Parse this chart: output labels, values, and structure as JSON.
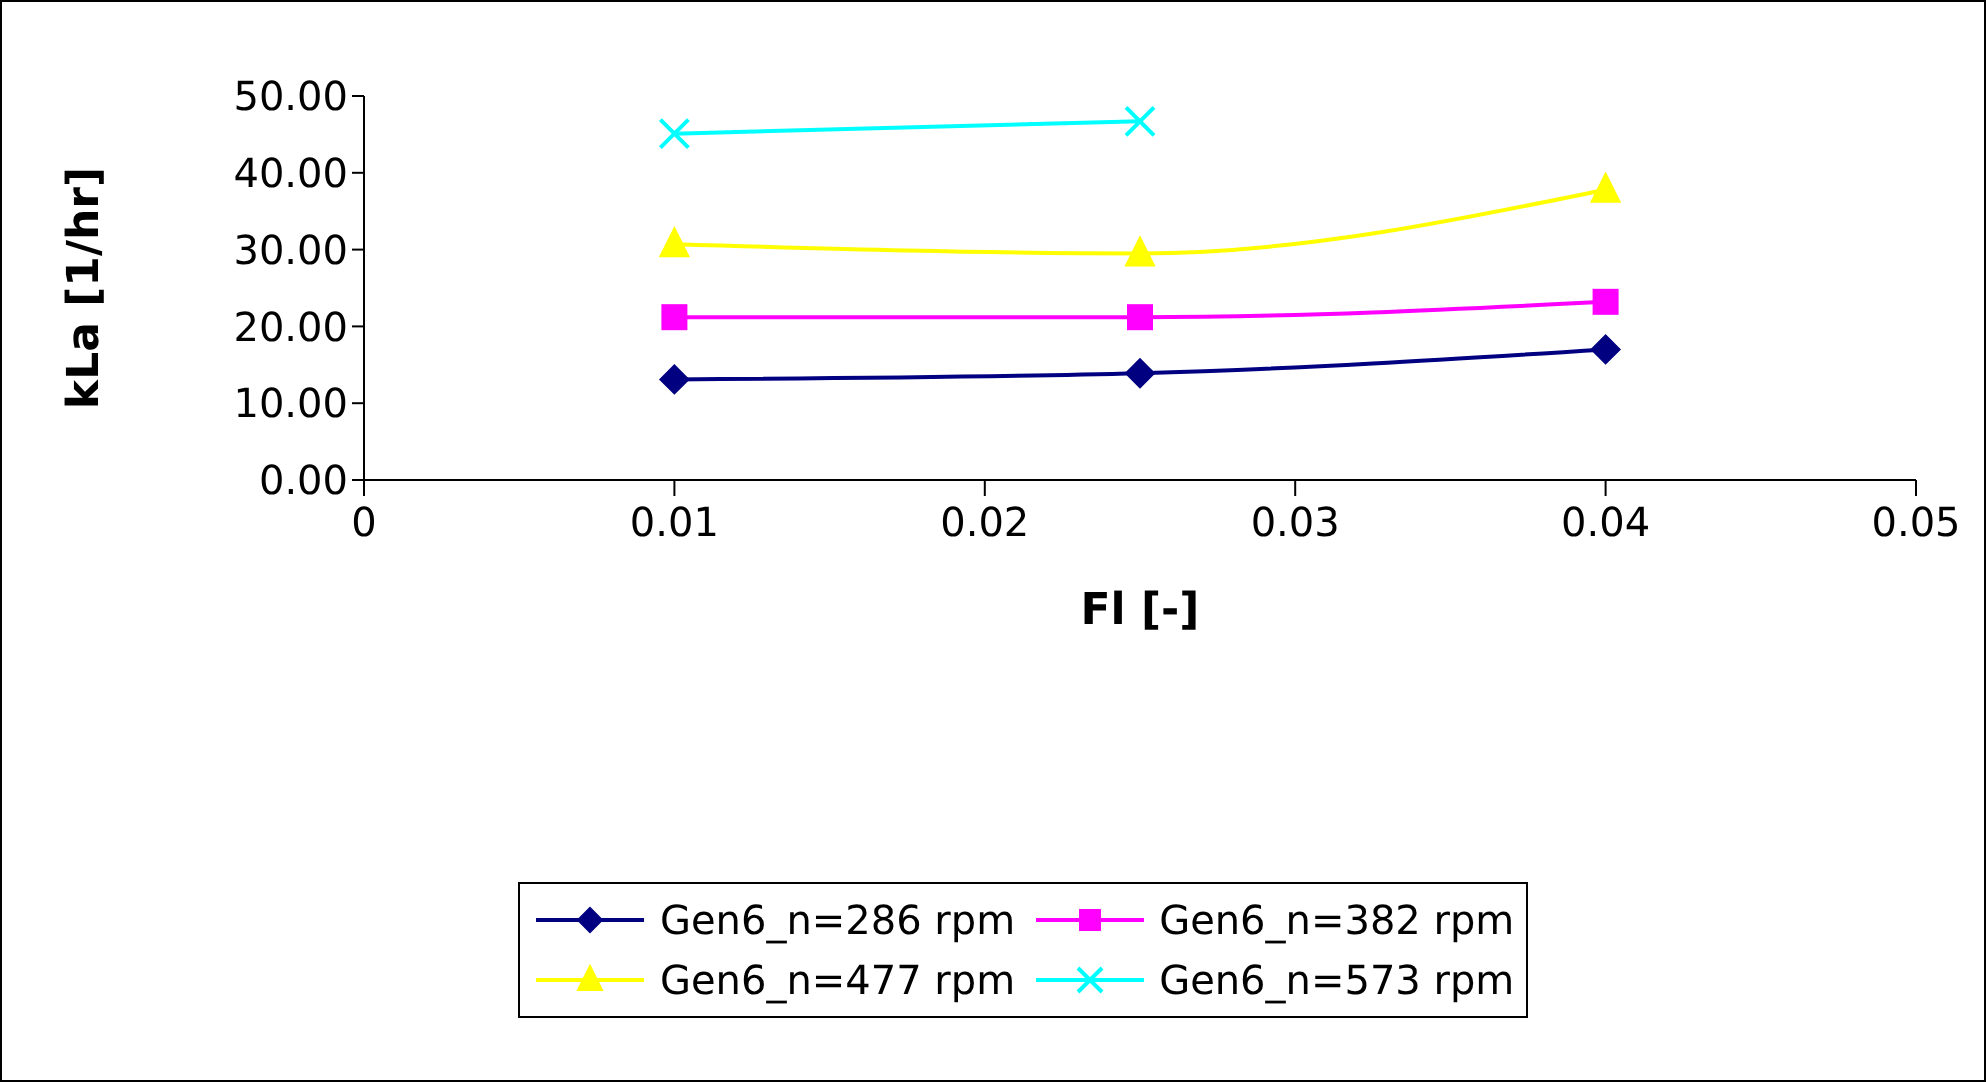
{
  "chart_data": {
    "type": "line",
    "xlabel": "Fl [-]",
    "ylabel": "kLa [1/hr]",
    "x": [
      0.01,
      0.025,
      0.04
    ],
    "xlim": [
      0,
      0.05
    ],
    "xticks": [
      0,
      0.01,
      0.02,
      0.03,
      0.04,
      0.05
    ],
    "ylim": [
      0,
      50
    ],
    "yticks": [
      {
        "value": 0,
        "label": "0.00"
      },
      {
        "value": 10,
        "label": "10.00"
      },
      {
        "value": 20,
        "label": "20.00"
      },
      {
        "value": 30,
        "label": "30.00"
      },
      {
        "value": 40,
        "label": "40.00"
      },
      {
        "value": 50,
        "label": "50.00"
      }
    ],
    "grid": false,
    "legend": "bottom",
    "series": [
      {
        "name": "Gen6_n=286 rpm",
        "color": "#000080",
        "marker": "diamond",
        "values": [
          13.1,
          13.9,
          17.0
        ]
      },
      {
        "name": "Gen6_n=382 rpm",
        "color": "#ff00ff",
        "marker": "square",
        "values": [
          21.2,
          21.2,
          23.2
        ]
      },
      {
        "name": "Gen6_n=477 rpm",
        "color": "#ffff00",
        "marker": "triangle",
        "values": [
          30.7,
          29.5,
          37.8
        ]
      },
      {
        "name": "Gen6_n=573 rpm",
        "color": "#00ffff",
        "marker": "cross",
        "values": [
          45.1,
          46.7,
          null
        ]
      }
    ]
  }
}
